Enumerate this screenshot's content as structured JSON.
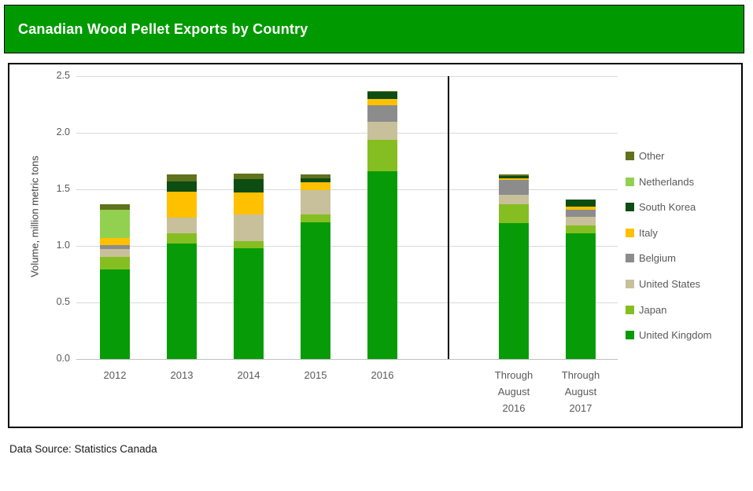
{
  "title": "Canadian Wood Pellet Exports by Country",
  "footer": "Data Source: Statistics Canada",
  "colors": {
    "header_bg": "#009A00",
    "header_text": "#FFFFFF",
    "panel_border": "#000000",
    "gridline": "#D9D9D9",
    "baseline": "#C0C0C0",
    "tick_text": "#595959",
    "axis_title_text": "#404040",
    "divider": "#000000"
  },
  "chart_data": {
    "type": "bar",
    "stacked": true,
    "title": "Canadian Wood Pellet Exports by Country",
    "ylabel": "Volume, million metric tons",
    "xlabel": "",
    "ylim": [
      0,
      2.5
    ],
    "ytick_step": 0.5,
    "yticks": [
      "0.0",
      "0.5",
      "1.0",
      "1.5",
      "2.0",
      "2.5"
    ],
    "grid": true,
    "legend_position": "right",
    "legend_order_top_to_bottom": [
      "Other",
      "Netherlands",
      "South Korea",
      "Italy",
      "Belgium",
      "United States",
      "Japan",
      "United Kingdom"
    ],
    "categories": [
      "2012",
      "2013",
      "2014",
      "2015",
      "2016",
      "Through August 2016",
      "Through August 2017"
    ],
    "category_display": [
      "2012",
      "2013",
      "2014",
      "2015",
      "2016",
      "Through\nAugust\n2016",
      "Through\nAugust\n2017"
    ],
    "divider_after_category_index": 4,
    "series": [
      {
        "name": "United Kingdom",
        "color": "#079C07",
        "values": [
          0.79,
          1.02,
          0.98,
          1.21,
          1.66,
          1.2,
          1.11
        ]
      },
      {
        "name": "Japan",
        "color": "#85BE21",
        "values": [
          0.11,
          0.09,
          0.06,
          0.07,
          0.28,
          0.17,
          0.07
        ]
      },
      {
        "name": "United States",
        "color": "#C8C09B",
        "values": [
          0.07,
          0.14,
          0.24,
          0.21,
          0.16,
          0.08,
          0.08
        ]
      },
      {
        "name": "Belgium",
        "color": "#8C8C8C",
        "values": [
          0.04,
          0.0,
          0.0,
          0.0,
          0.14,
          0.13,
          0.06
        ]
      },
      {
        "name": "Italy",
        "color": "#FFC000",
        "values": [
          0.06,
          0.23,
          0.19,
          0.07,
          0.06,
          0.02,
          0.03
        ]
      },
      {
        "name": "South Korea",
        "color": "#0D4D11",
        "values": [
          0.0,
          0.09,
          0.12,
          0.04,
          0.06,
          0.02,
          0.06
        ]
      },
      {
        "name": "Netherlands",
        "color": "#92D050",
        "values": [
          0.25,
          0.0,
          0.0,
          0.0,
          0.0,
          0.0,
          0.0
        ]
      },
      {
        "name": "Other",
        "color": "#5F721D",
        "values": [
          0.05,
          0.06,
          0.05,
          0.03,
          0.01,
          0.01,
          0.0
        ]
      }
    ],
    "totals": [
      1.37,
      1.63,
      1.64,
      1.63,
      2.37,
      1.63,
      1.41
    ]
  }
}
